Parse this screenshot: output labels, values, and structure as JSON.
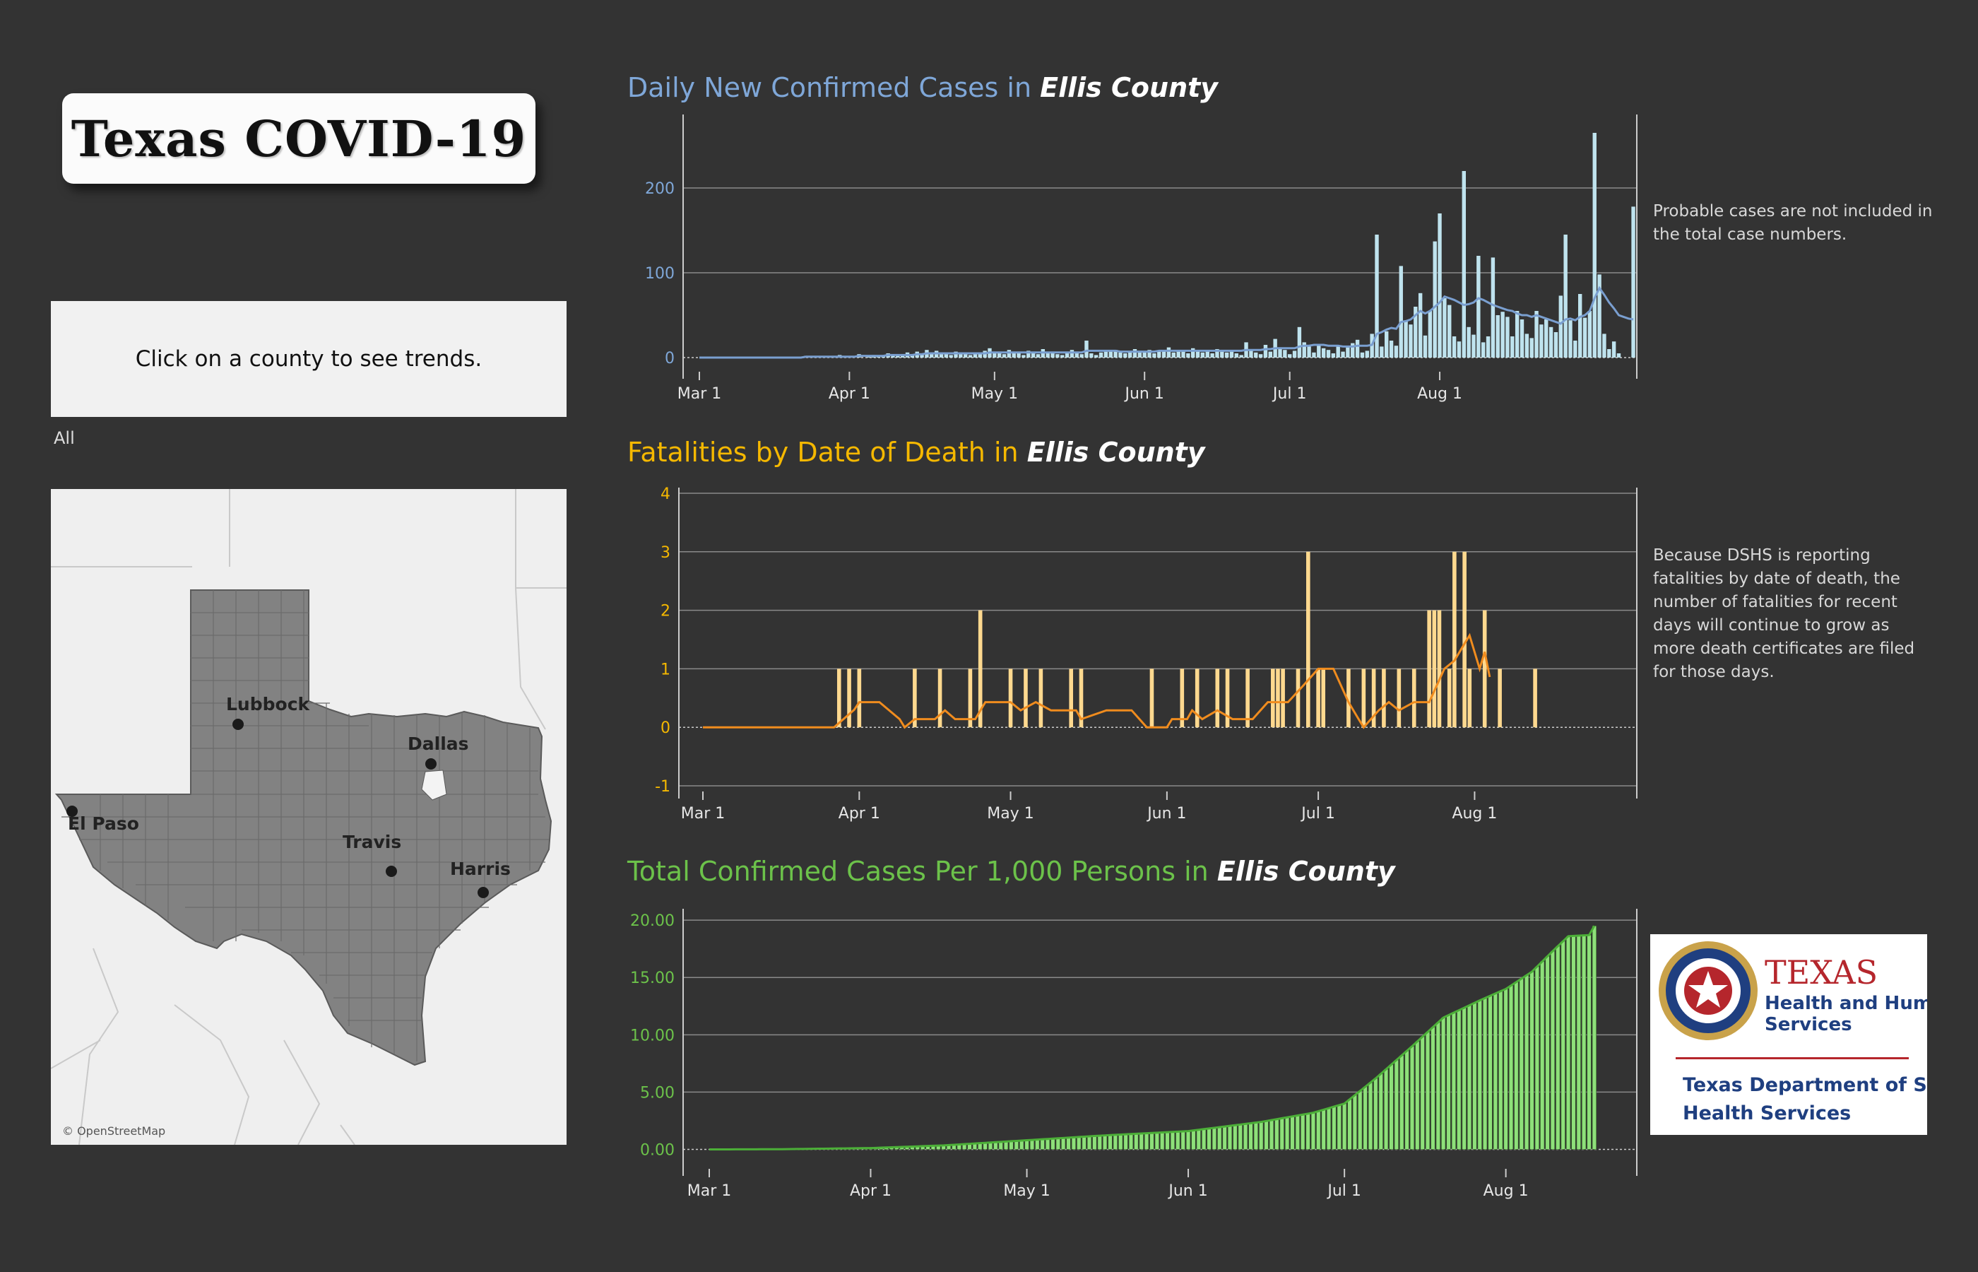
{
  "header": {
    "title": "Texas COVID-19"
  },
  "instruction": "Click on a county to see trends.",
  "filter": {
    "label": "All"
  },
  "map": {
    "attribution": "© OpenStreetMap",
    "labels": {
      "lubbock": "Lubbock",
      "dallas": "Dallas",
      "el_paso": "El Paso",
      "travis": "Travis",
      "harris": "Harris"
    },
    "state_fill": "#808080"
  },
  "charts": {
    "daily": {
      "title_prefix": "Daily New Confirmed Cases in ",
      "county": "Ellis County",
      "note_lines": [
        "Probable cases are not included in",
        "the total case numbers."
      ],
      "color": "#7fa7d8"
    },
    "fatal": {
      "title_prefix": "Fatalities by Date of Death in ",
      "county": "Ellis County",
      "note_lines": [
        "Because DSHS is reporting",
        "fatalities by date of death, the",
        "number of fatalities for recent",
        "days will continue to grow as",
        "more death certificates are filed",
        "for those days."
      ],
      "color": "#f5b800"
    },
    "total": {
      "title_prefix": "Total Confirmed Cases Per 1,000 Persons in ",
      "county": "Ellis County",
      "color": "#6cc24a"
    }
  },
  "logo": {
    "line1": "TEXAS",
    "line2": "Health and Human",
    "line3": "Services",
    "line4": "Texas Department of State",
    "line5": "Health Services"
  },
  "chart_data": [
    {
      "type": "bar",
      "title": "Daily New Confirmed Cases in Ellis County",
      "x_ticks": [
        "Mar 1",
        "Apr 1",
        "May 1",
        "Jun 1",
        "Jul 1",
        "Aug 1"
      ],
      "y_ticks": [
        0,
        100,
        200
      ],
      "ylim": [
        -10,
        280
      ],
      "x_start": "Mar 1",
      "x_end": "Aug 18",
      "grid": true,
      "series": [
        {
          "values": [
            0,
            0,
            0,
            0,
            0,
            0,
            0,
            0,
            0,
            0,
            0,
            0,
            0,
            0,
            0,
            0,
            0,
            0,
            0,
            1,
            0,
            0,
            2,
            0,
            0,
            1,
            0,
            0,
            0,
            3,
            0,
            2,
            1,
            4,
            0,
            2,
            3,
            1,
            2,
            5,
            3,
            2,
            4,
            6,
            3,
            7,
            5,
            9,
            4,
            8,
            5,
            6,
            3,
            7,
            4,
            5,
            3,
            6,
            4,
            8,
            11,
            5,
            7,
            4,
            9,
            6,
            5,
            3,
            8,
            6,
            4,
            10,
            5,
            7,
            4,
            3,
            6,
            9,
            5,
            4,
            20,
            5,
            3,
            6,
            7,
            8,
            9,
            6,
            5,
            7,
            10,
            8,
            6,
            9,
            5,
            7,
            8,
            12,
            6,
            9,
            7,
            5,
            11,
            8,
            6,
            9,
            5,
            10,
            7,
            6,
            8,
            5,
            3,
            18,
            9,
            6,
            4,
            15,
            7,
            22,
            11,
            9,
            4,
            8,
            36,
            18,
            13,
            6,
            15,
            11,
            9,
            5,
            13,
            7,
            12,
            17,
            21,
            6,
            8,
            28,
            145,
            13,
            31,
            20,
            14,
            108,
            43,
            39,
            60,
            76,
            26,
            55,
            137,
            170,
            70,
            62,
            25,
            19,
            220,
            36,
            27,
            120,
            18,
            25,
            118,
            50,
            54,
            48,
            25,
            55,
            45,
            28,
            23,
            55,
            39,
            45,
            36,
            30,
            73,
            145,
            44,
            20,
            75,
            47,
            55,
            265,
            98,
            28,
            10,
            19,
            5,
            0,
            0,
            178
          ],
          "smoothed": [
            0,
            0,
            0,
            0,
            0,
            0,
            0,
            0,
            0,
            0,
            0,
            0,
            0,
            0,
            0,
            0,
            0,
            0,
            0,
            0,
            0,
            0,
            1,
            1,
            1,
            1,
            1,
            1,
            1,
            1,
            1,
            1,
            1,
            2,
            2,
            2,
            2,
            2,
            2,
            3,
            3,
            3,
            3,
            3,
            3,
            4,
            4,
            5,
            5,
            5,
            5,
            5,
            5,
            5,
            5,
            5,
            5,
            5,
            5,
            5,
            6,
            6,
            6,
            6,
            6,
            6,
            6,
            6,
            6,
            6,
            6,
            6,
            6,
            6,
            6,
            6,
            6,
            6,
            6,
            6,
            8,
            8,
            8,
            8,
            8,
            8,
            8,
            7,
            7,
            7,
            7,
            7,
            7,
            7,
            7,
            8,
            8,
            8,
            8,
            8,
            8,
            8,
            8,
            8,
            8,
            8,
            8,
            8,
            8,
            8,
            8,
            8,
            8,
            9,
            9,
            9,
            9,
            10,
            10,
            11,
            11,
            11,
            11,
            11,
            13,
            14,
            14,
            15,
            15,
            15,
            14,
            14,
            14,
            13,
            13,
            13,
            14,
            14,
            14,
            15,
            28,
            30,
            33,
            35,
            34,
            42,
            43,
            45,
            50,
            55,
            52,
            55,
            60,
            65,
            72,
            70,
            68,
            65,
            62,
            63,
            65,
            70,
            68,
            65,
            62,
            60,
            58,
            56,
            55,
            52,
            50,
            50,
            48,
            50,
            48,
            46,
            44,
            42,
            40,
            45,
            46,
            44,
            48,
            50,
            55,
            70,
            82,
            74,
            65,
            58,
            50,
            48,
            46,
            45
          ]
        }
      ]
    },
    {
      "type": "bar",
      "title": "Fatalities by Date of Death in Ellis County",
      "x_ticks": [
        "Mar 1",
        "Apr 1",
        "May 1",
        "Jun 1",
        "Jul 1",
        "Aug 1"
      ],
      "y_ticks": [
        -1,
        0,
        1,
        2,
        3,
        4
      ],
      "ylim": [
        -1,
        4
      ],
      "grid": true,
      "bars": [
        {
          "date": "Mar 28",
          "value": 1
        },
        {
          "date": "Mar 30",
          "value": 1
        },
        {
          "date": "Apr 1",
          "value": 1
        },
        {
          "date": "Apr 12",
          "value": 1
        },
        {
          "date": "Apr 17",
          "value": 1
        },
        {
          "date": "Apr 23",
          "value": 1
        },
        {
          "date": "Apr 25",
          "value": 2
        },
        {
          "date": "May 1",
          "value": 1
        },
        {
          "date": "May 4",
          "value": 1
        },
        {
          "date": "May 7",
          "value": 1
        },
        {
          "date": "May 13",
          "value": 1
        },
        {
          "date": "May 15",
          "value": 1
        },
        {
          "date": "May 29",
          "value": 1
        },
        {
          "date": "Jun 4",
          "value": 1
        },
        {
          "date": "Jun 7",
          "value": 1
        },
        {
          "date": "Jun 11",
          "value": 1
        },
        {
          "date": "Jun 13",
          "value": 1
        },
        {
          "date": "Jun 17",
          "value": 1
        },
        {
          "date": "Jun 22",
          "value": 1
        },
        {
          "date": "Jun 23",
          "value": 1
        },
        {
          "date": "Jun 24",
          "value": 1
        },
        {
          "date": "Jun 27",
          "value": 1
        },
        {
          "date": "Jun 29",
          "value": 3
        },
        {
          "date": "Jul 1",
          "value": 1
        },
        {
          "date": "Jul 2",
          "value": 1
        },
        {
          "date": "Jul 7",
          "value": 1
        },
        {
          "date": "Jul 10",
          "value": 1
        },
        {
          "date": "Jul 12",
          "value": 1
        },
        {
          "date": "Jul 14",
          "value": 1
        },
        {
          "date": "Jul 17",
          "value": 1
        },
        {
          "date": "Jul 20",
          "value": 1
        },
        {
          "date": "Jul 23",
          "value": 2
        },
        {
          "date": "Jul 24",
          "value": 2
        },
        {
          "date": "Jul 25",
          "value": 2
        },
        {
          "date": "Jul 27",
          "value": 1
        },
        {
          "date": "Jul 28",
          "value": 3
        },
        {
          "date": "Jul 30",
          "value": 3
        },
        {
          "date": "Jul 31",
          "value": 1
        },
        {
          "date": "Aug 3",
          "value": 2
        },
        {
          "date": "Aug 6",
          "value": 1
        },
        {
          "date": "Aug 13",
          "value": 1
        }
      ],
      "smoothed": [
        {
          "date": "Mar 1",
          "value": 0
        },
        {
          "date": "Mar 27",
          "value": 0
        },
        {
          "date": "Mar 31",
          "value": 0.3
        },
        {
          "date": "Apr 1",
          "value": 0.43
        },
        {
          "date": "Apr 5",
          "value": 0.43
        },
        {
          "date": "Apr 9",
          "value": 0.14
        },
        {
          "date": "Apr 10",
          "value": 0
        },
        {
          "date": "Apr 12",
          "value": 0.14
        },
        {
          "date": "Apr 16",
          "value": 0.14
        },
        {
          "date": "Apr 18",
          "value": 0.29
        },
        {
          "date": "Apr 20",
          "value": 0.14
        },
        {
          "date": "Apr 24",
          "value": 0.14
        },
        {
          "date": "Apr 26",
          "value": 0.43
        },
        {
          "date": "May 1",
          "value": 0.43
        },
        {
          "date": "May 3",
          "value": 0.29
        },
        {
          "date": "May 6",
          "value": 0.43
        },
        {
          "date": "May 9",
          "value": 0.29
        },
        {
          "date": "May 14",
          "value": 0.29
        },
        {
          "date": "May 15",
          "value": 0.14
        },
        {
          "date": "May 20",
          "value": 0.29
        },
        {
          "date": "May 25",
          "value": 0.29
        },
        {
          "date": "May 28",
          "value": 0
        },
        {
          "date": "Jun 1",
          "value": 0
        },
        {
          "date": "Jun 2",
          "value": 0.14
        },
        {
          "date": "Jun 5",
          "value": 0.14
        },
        {
          "date": "Jun 6",
          "value": 0.29
        },
        {
          "date": "Jun 8",
          "value": 0.14
        },
        {
          "date": "Jun 11",
          "value": 0.29
        },
        {
          "date": "Jun 14",
          "value": 0.14
        },
        {
          "date": "Jun 18",
          "value": 0.14
        },
        {
          "date": "Jun 21",
          "value": 0.43
        },
        {
          "date": "Jun 25",
          "value": 0.43
        },
        {
          "date": "Jun 28",
          "value": 0.71
        },
        {
          "date": "Jul 1",
          "value": 1
        },
        {
          "date": "Jul 4",
          "value": 1
        },
        {
          "date": "Jul 7",
          "value": 0.43
        },
        {
          "date": "Jul 9",
          "value": 0.14
        },
        {
          "date": "Jul 10",
          "value": 0
        },
        {
          "date": "Jul 13",
          "value": 0.29
        },
        {
          "date": "Jul 15",
          "value": 0.43
        },
        {
          "date": "Jul 17",
          "value": 0.29
        },
        {
          "date": "Jul 20",
          "value": 0.43
        },
        {
          "date": "Jul 23",
          "value": 0.43
        },
        {
          "date": "Jul 26",
          "value": 1
        },
        {
          "date": "Jul 28",
          "value": 1.14
        },
        {
          "date": "Jul 30",
          "value": 1.43
        },
        {
          "date": "Jul 31",
          "value": 1.57
        },
        {
          "date": "Aug 2",
          "value": 1
        },
        {
          "date": "Aug 3",
          "value": 1.29
        },
        {
          "date": "Aug 4",
          "value": 0.86
        }
      ]
    },
    {
      "type": "bar",
      "title": "Total Confirmed Cases Per 1,000 Persons in Ellis County",
      "x_ticks": [
        "Mar 1",
        "Apr 1",
        "May 1",
        "Jun 1",
        "Jul 1",
        "Aug 1"
      ],
      "y_ticks": [
        "0.00",
        "5.00",
        "10.00",
        "15.00",
        "20.00"
      ],
      "ylim": [
        -1.2,
        20.5
      ],
      "grid": true,
      "x_start": "Mar 1",
      "x_end": "Aug 18",
      "series": [
        {
          "cumulative_points": [
            {
              "date": "Mar 1",
              "value": 0
            },
            {
              "date": "Mar 15",
              "value": 0.02
            },
            {
              "date": "Apr 1",
              "value": 0.12
            },
            {
              "date": "Apr 15",
              "value": 0.35
            },
            {
              "date": "May 1",
              "value": 0.8
            },
            {
              "date": "May 15",
              "value": 1.2
            },
            {
              "date": "Jun 1",
              "value": 1.6
            },
            {
              "date": "Jun 15",
              "value": 2.4
            },
            {
              "date": "Jun 25",
              "value": 3.2
            },
            {
              "date": "Jul 1",
              "value": 4.0
            },
            {
              "date": "Jul 7",
              "value": 6.2
            },
            {
              "date": "Jul 14",
              "value": 9.0
            },
            {
              "date": "Jul 20",
              "value": 11.5
            },
            {
              "date": "Jul 27",
              "value": 13.0
            },
            {
              "date": "Aug 1",
              "value": 14.0
            },
            {
              "date": "Aug 6",
              "value": 15.5
            },
            {
              "date": "Aug 10",
              "value": 17.3
            },
            {
              "date": "Aug 13",
              "value": 18.6
            },
            {
              "date": "Aug 17",
              "value": 18.7
            },
            {
              "date": "Aug 18",
              "value": 19.5
            }
          ]
        }
      ]
    }
  ]
}
